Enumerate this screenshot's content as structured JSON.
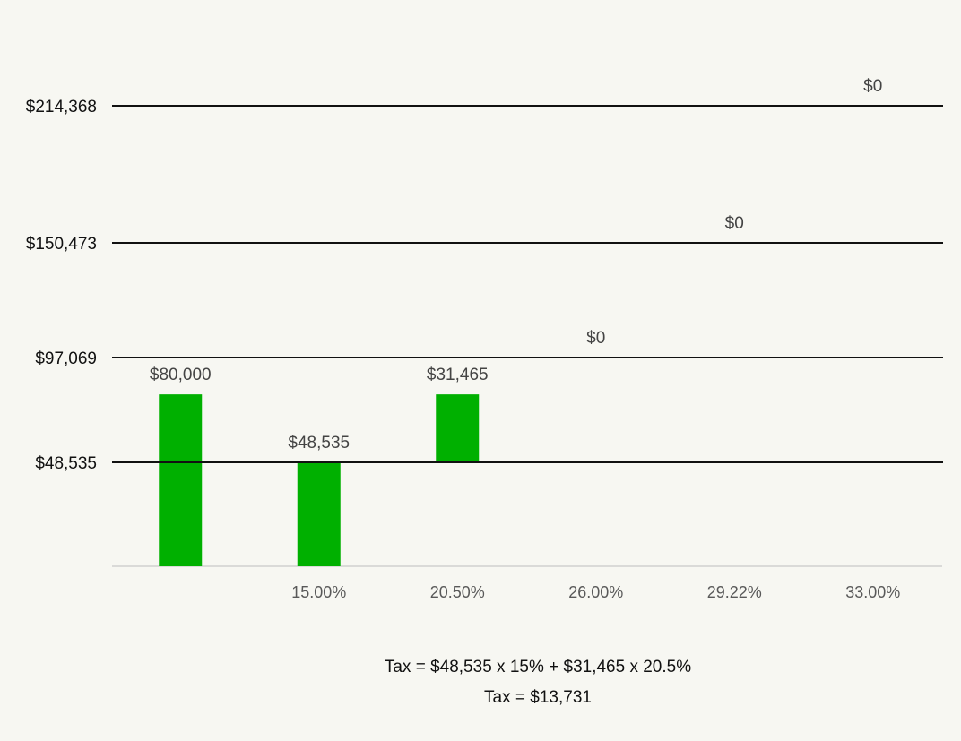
{
  "chart_data": {
    "type": "bar",
    "categories": [
      "",
      "15.00%",
      "20.50%",
      "26.00%",
      "29.22%",
      "33.00%"
    ],
    "bars": [
      {
        "category_index": 0,
        "value": 80000,
        "bottom": 0,
        "label": "$80,000"
      },
      {
        "category_index": 1,
        "value": 48535,
        "bottom": 0,
        "label": "$48,535"
      },
      {
        "category_index": 2,
        "value": 31465,
        "bottom": 48535,
        "label": "$31,465"
      },
      {
        "category_index": 3,
        "value": 0,
        "bottom": 97069,
        "label": "$0"
      },
      {
        "category_index": 4,
        "value": 0,
        "bottom": 150473,
        "label": "$0"
      },
      {
        "category_index": 5,
        "value": 0,
        "bottom": 214368,
        "label": "$0"
      }
    ],
    "brackets": [
      {
        "value": 48535,
        "label": "$48,535"
      },
      {
        "value": 97069,
        "label": "$97,069"
      },
      {
        "value": 150473,
        "label": "$150,473"
      },
      {
        "value": 214368,
        "label": "$214,368"
      }
    ],
    "colors": {
      "bar": "#00b000"
    }
  },
  "caption": {
    "line1": "Tax = $48,535 x 15% + $31,465 x 20.5%",
    "line2": "Tax = $13,731"
  }
}
